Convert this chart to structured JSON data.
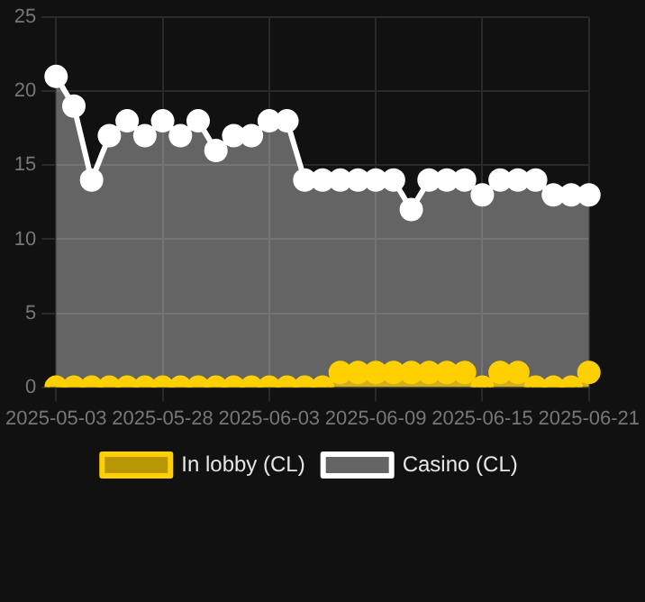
{
  "chart_data": {
    "type": "area",
    "categories": [
      "2025-05-03",
      null,
      null,
      null,
      null,
      null,
      "2025-05-28",
      null,
      null,
      null,
      null,
      null,
      "2025-06-03",
      null,
      null,
      null,
      null,
      null,
      "2025-06-09",
      null,
      null,
      null,
      null,
      null,
      "2025-06-15",
      null,
      null,
      null,
      null,
      null,
      "2025-06-21"
    ],
    "series": [
      {
        "name": "In lobby (CL)",
        "color": "#ffd000",
        "values": [
          0,
          0,
          0,
          0,
          0,
          0,
          0,
          0,
          0,
          0,
          0,
          0,
          0,
          0,
          0,
          0,
          1,
          1,
          1,
          1,
          1,
          1,
          1,
          1,
          0,
          1,
          1,
          0,
          0,
          0,
          1
        ]
      },
      {
        "name": "Casino (CL)",
        "color": "#ffffff",
        "values": [
          21,
          19,
          14,
          17,
          18,
          17,
          18,
          17,
          18,
          16,
          17,
          17,
          18,
          18,
          14,
          14,
          14,
          14,
          14,
          14,
          12,
          14,
          14,
          14,
          13,
          14,
          14,
          14,
          13,
          13,
          13
        ]
      }
    ],
    "ylim": [
      0,
      25
    ],
    "yticks": [
      0,
      5,
      10,
      15,
      20,
      25
    ],
    "grid": true,
    "legend": "bottom",
    "marker": "circle"
  }
}
